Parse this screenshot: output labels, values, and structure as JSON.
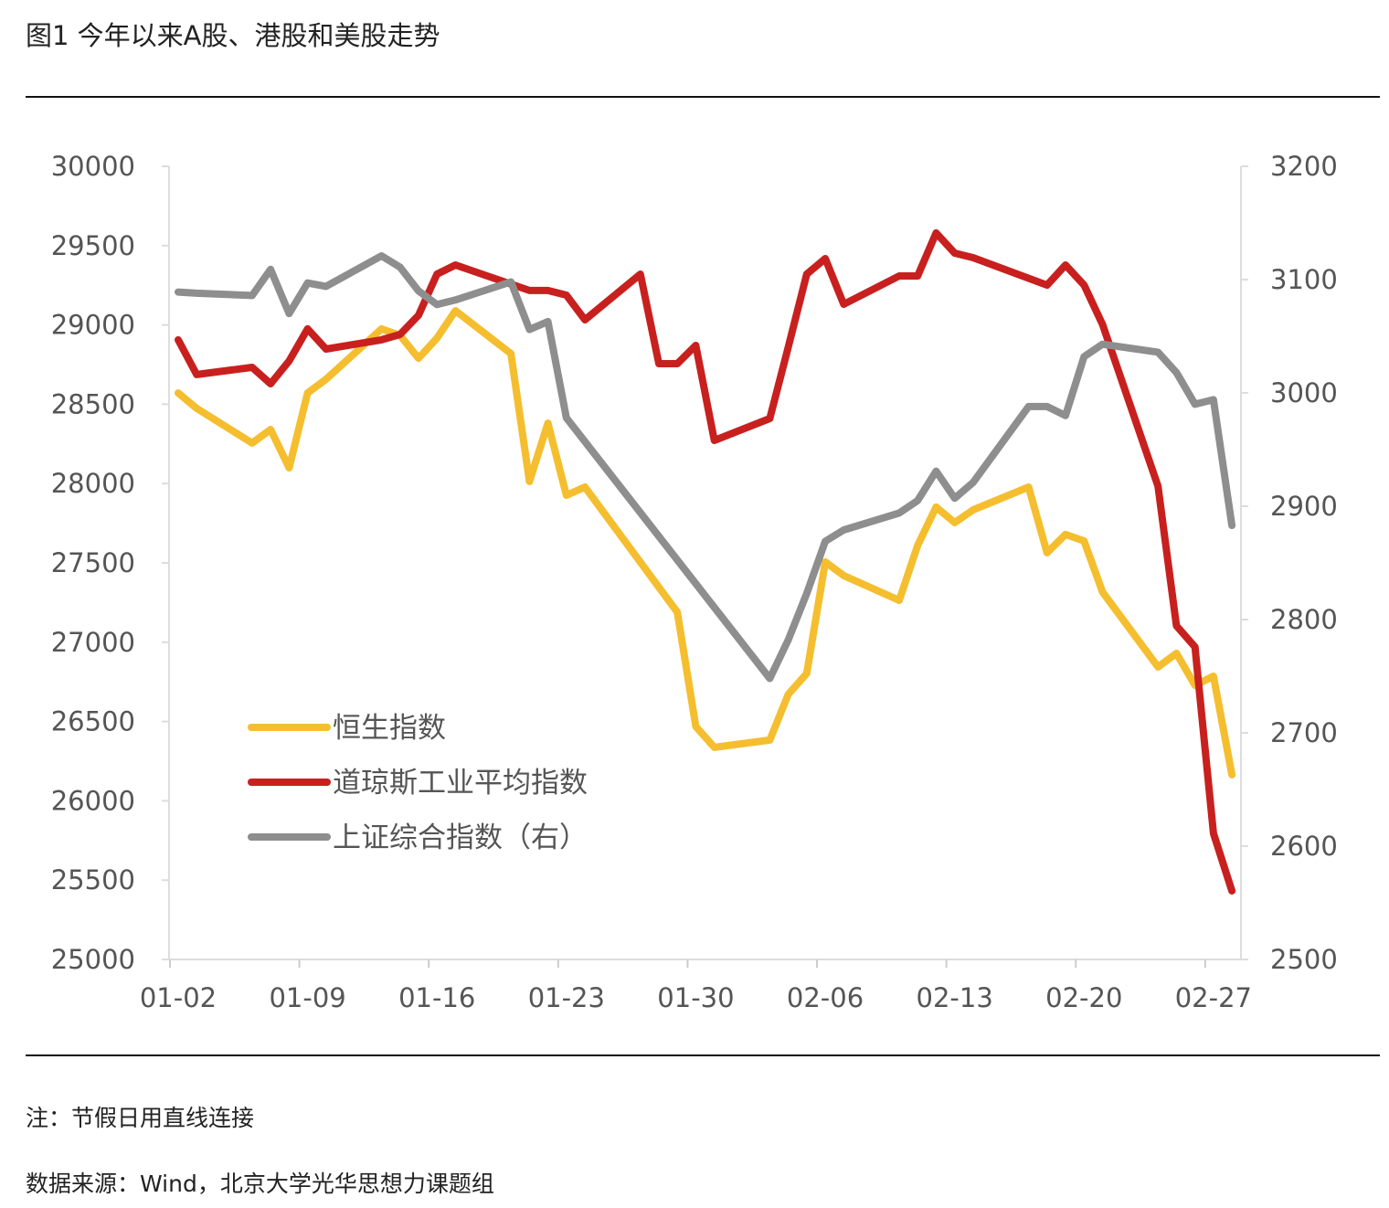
{
  "title": "图1 今年以来A股、港股和美股走势",
  "note": "注：节假日用直线连接",
  "source": "数据来源：Wind，北京大学光华思想力课题组",
  "chart_data": {
    "type": "line",
    "title": "图1 今年以来A股、港股和美股走势",
    "xlabel": "",
    "ylabel": "",
    "y2label": "",
    "x_ticks": [
      "01-02",
      "01-09",
      "01-16",
      "01-23",
      "01-30",
      "02-06",
      "02-13",
      "02-20",
      "02-27"
    ],
    "ylim": [
      25000,
      30000
    ],
    "y_ticks": [
      30000,
      29500,
      29000,
      28500,
      28000,
      27500,
      27000,
      26500,
      26000,
      25500,
      25000
    ],
    "y2lim": [
      2500,
      3200
    ],
    "y2_ticks": [
      3200,
      3100,
      3000,
      2900,
      2800,
      2700,
      2600,
      2500
    ],
    "grid": false,
    "legend_position": "lower-left",
    "series": [
      {
        "name": "恒生指数",
        "axis": "left",
        "color": "#F5BE2E",
        "x": [
          "01-02",
          "01-03",
          "01-06",
          "01-07",
          "01-08",
          "01-09",
          "01-10",
          "01-13",
          "01-14",
          "01-15",
          "01-16",
          "01-17",
          "01-20",
          "01-21",
          "01-22",
          "01-23",
          "01-24",
          "01-29",
          "01-30",
          "01-31",
          "02-03",
          "02-04",
          "02-05",
          "02-06",
          "02-07",
          "02-10",
          "02-11",
          "02-12",
          "02-13",
          "02-14",
          "02-17",
          "02-18",
          "02-19",
          "02-20",
          "02-21",
          "02-24",
          "02-25",
          "02-26",
          "02-27",
          "02-28"
        ],
        "values": [
          28571,
          28474,
          28255,
          28341,
          28099,
          28571,
          28658,
          28975,
          28934,
          28790,
          28917,
          29090,
          28819,
          28013,
          28381,
          27926,
          27978,
          27189,
          26469,
          26337,
          26383,
          26671,
          26803,
          27506,
          27420,
          27264,
          27610,
          27852,
          27754,
          27834,
          27978,
          27564,
          27679,
          27638,
          27316,
          26844,
          26930,
          26728,
          26786,
          26164
        ]
      },
      {
        "name": "道琼斯工业平均指数",
        "axis": "left",
        "color": "#C8201E",
        "x": [
          "01-02",
          "01-03",
          "01-06",
          "01-07",
          "01-08",
          "01-09",
          "01-10",
          "01-13",
          "01-14",
          "01-15",
          "01-16",
          "01-17",
          "01-21",
          "01-22",
          "01-23",
          "01-24",
          "01-27",
          "01-28",
          "01-29",
          "01-30",
          "01-31",
          "02-03",
          "02-04",
          "02-05",
          "02-06",
          "02-07",
          "02-10",
          "02-11",
          "02-12",
          "02-13",
          "02-14",
          "02-18",
          "02-19",
          "02-20",
          "02-21",
          "02-24",
          "02-25",
          "02-26",
          "02-27",
          "02-28"
        ],
        "values": [
          28906,
          28687,
          28733,
          28629,
          28773,
          28975,
          28848,
          28906,
          28940,
          29061,
          29320,
          29378,
          29217,
          29217,
          29188,
          29032,
          29320,
          28756,
          28756,
          28871,
          28272,
          28410,
          28860,
          29320,
          29418,
          29130,
          29309,
          29309,
          29580,
          29453,
          29424,
          29251,
          29378,
          29251,
          29003,
          27984,
          27103,
          26970,
          25795,
          25432
        ]
      },
      {
        "name": "上证综合指数（右）",
        "axis": "right",
        "color": "#8E8E8E",
        "x": [
          "01-02",
          "01-03",
          "01-06",
          "01-07",
          "01-08",
          "01-09",
          "01-10",
          "01-13",
          "01-14",
          "01-15",
          "01-16",
          "01-17",
          "01-20",
          "01-21",
          "01-22",
          "01-23",
          "02-03",
          "02-04",
          "02-05",
          "02-06",
          "02-07",
          "02-10",
          "02-11",
          "02-12",
          "02-13",
          "02-14",
          "02-17",
          "02-18",
          "02-19",
          "02-20",
          "02-21",
          "02-24",
          "02-25",
          "02-26",
          "02-27",
          "02-28"
        ],
        "values": [
          3089,
          3088,
          3086,
          3109,
          3070,
          3097,
          3094,
          3121,
          3111,
          3090,
          3078,
          3082,
          3098,
          3056,
          3063,
          2978,
          2748,
          2782,
          2823,
          2869,
          2879,
          2894,
          2905,
          2931,
          2907,
          2921,
          2988,
          2988,
          2980,
          3032,
          3043,
          3036,
          3018,
          2990,
          2994,
          2883
        ]
      }
    ]
  }
}
